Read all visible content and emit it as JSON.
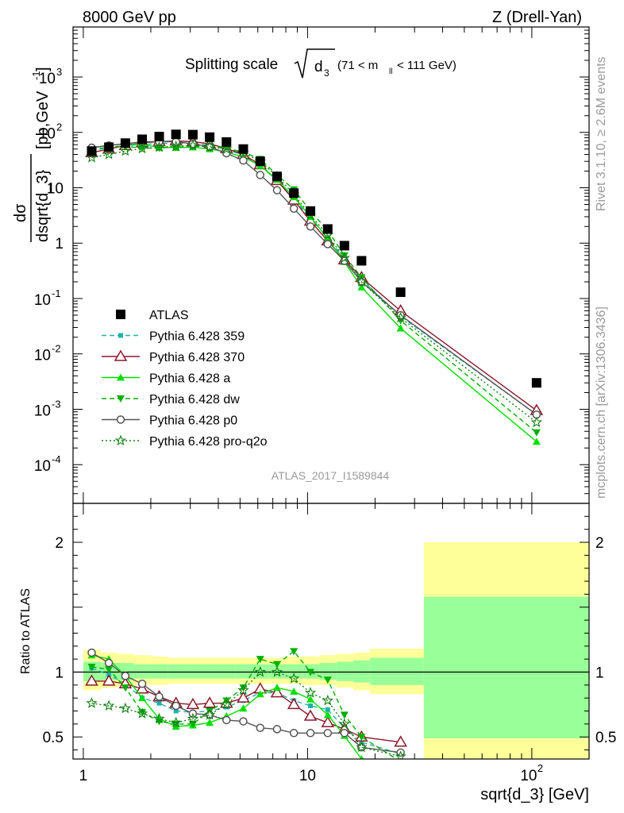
{
  "header": {
    "left": "8000 GeV pp",
    "right": "Z (Drell-Yan)"
  },
  "side_texts": {
    "rivet": "Rivet 3.1.10, ≥ 2.6M events",
    "mcplots": "mcplots.cern.ch [arXiv:1306.3436]"
  },
  "chart_data": [
    {
      "type": "line",
      "title_parts": {
        "prefix": "Splitting scale",
        "var": "d",
        "var_sub": "3",
        "range_open": "(71 < m",
        "range_sub": "ll",
        "range_close": " < 111 GeV)"
      },
      "ylabel_top": "dσ",
      "ylabel_bottom": "dsqrt{d_3}",
      "ylabel_units": "[pb,GeV",
      "ylabel_units_sup": "-1",
      "ylabel_units_close": "]",
      "watermark": "ATLAS_2017_I1589844",
      "y_scale": "log",
      "ylim": [
        2e-05,
        8000
      ],
      "y_ticks": [
        {
          "v": 0.0001,
          "base": "10",
          "exp": "-4"
        },
        {
          "v": 0.001,
          "base": "10",
          "exp": "-3"
        },
        {
          "v": 0.01,
          "base": "10",
          "exp": "-2"
        },
        {
          "v": 0.1,
          "base": "10",
          "exp": "-1"
        },
        {
          "v": 1,
          "base": "1",
          "exp": ""
        },
        {
          "v": 10,
          "base": "10",
          "exp": ""
        },
        {
          "v": 100,
          "base": "10",
          "exp": "2"
        },
        {
          "v": 1000,
          "base": "10",
          "exp": "3"
        }
      ],
      "x_scale": "log",
      "xlim": [
        0.9,
        180
      ],
      "legend_position": "middle-left",
      "x": [
        1.09,
        1.3,
        1.54,
        1.83,
        2.18,
        2.59,
        3.08,
        3.66,
        4.35,
        5.17,
        6.15,
        7.31,
        8.69,
        10.3,
        12.3,
        14.6,
        17.4,
        26.0,
        105.0
      ],
      "series": [
        {
          "name": "ATLAS",
          "color": "#000000",
          "style": "data",
          "y": [
            46,
            54,
            64,
            75,
            84,
            92,
            91,
            82,
            67,
            50,
            30,
            16,
            8,
            3.8,
            1.8,
            0.9,
            0.48,
            0.13,
            0.003
          ]
        },
        {
          "name": "Pythia 6.428 359",
          "color": "#20b2aa",
          "style": "dashed",
          "marker": "square-small",
          "y": [
            47,
            53,
            58,
            60,
            63,
            64,
            63,
            58,
            49,
            39,
            25,
            13.5,
            6.2,
            2.8,
            1.25,
            0.52,
            0.22,
            0.048,
            0.0008
          ]
        },
        {
          "name": "Pythia 6.428 370",
          "color": "#8b1a2a",
          "style": "solid",
          "marker": "triangle-open",
          "y": [
            43,
            50,
            58,
            65,
            68,
            70,
            68,
            62,
            51,
            40,
            26,
            13.5,
            6.0,
            2.5,
            1.1,
            0.5,
            0.24,
            0.06,
            0.00095
          ]
        },
        {
          "name": "Pythia 6.428 a",
          "color": "#00e000",
          "style": "solid",
          "marker": "triangle-up",
          "y": [
            52,
            59,
            62,
            60,
            54,
            53,
            54,
            50,
            44,
            36,
            25,
            14,
            6.8,
            3.0,
            1.2,
            0.46,
            0.16,
            0.029,
            0.00026
          ]
        },
        {
          "name": "Pythia 6.428 dw",
          "color": "#00b000",
          "style": "dashed",
          "marker": "triangle-down",
          "y": [
            48,
            55,
            56,
            52,
            52,
            55,
            55,
            57,
            52,
            44,
            33,
            17,
            9.3,
            3.8,
            1.7,
            0.6,
            0.24,
            0.04,
            0.00038
          ]
        },
        {
          "name": "Pythia 6.428 p0",
          "color": "#555555",
          "style": "solid",
          "marker": "circle-open",
          "y": [
            53,
            58,
            62,
            68,
            68,
            68,
            62,
            55,
            42,
            31,
            17,
            9,
            4.2,
            2.0,
            0.96,
            0.48,
            0.2,
            0.05,
            0.0008
          ]
        },
        {
          "name": "Pythia 6.428 pro-q2o",
          "color": "#108010",
          "style": "dotted",
          "marker": "star-open",
          "y": [
            35,
            40,
            46,
            51,
            54,
            56,
            58,
            55,
            50,
            43,
            30,
            16,
            7.6,
            3.2,
            1.4,
            0.54,
            0.2,
            0.045,
            0.00058
          ]
        }
      ]
    },
    {
      "type": "line",
      "ylabel": "Ratio to ATLAS",
      "ylim": [
        0.33,
        2.3
      ],
      "y_ticks": [
        {
          "v": 0.5,
          "label": "0.5"
        },
        {
          "v": 1,
          "label": "1"
        },
        {
          "v": 2,
          "label": "2"
        }
      ],
      "x_ticks": [
        {
          "v": 1,
          "base": "1",
          "exp": ""
        },
        {
          "v": 10,
          "base": "10",
          "exp": ""
        },
        {
          "v": 100,
          "base": "10",
          "exp": "2"
        }
      ],
      "xlabel": "sqrt{d_3} [GeV]",
      "bands": {
        "edges": [
          1.0,
          1.2,
          1.42,
          1.68,
          2.0,
          2.38,
          2.83,
          3.37,
          4.0,
          4.76,
          5.66,
          6.73,
          8.0,
          9.51,
          11.3,
          13.45,
          16.0,
          19.0,
          33.0,
          180
        ],
        "yellow": [
          [
            0.86,
            1.17
          ],
          [
            0.88,
            1.15
          ],
          [
            0.89,
            1.14
          ],
          [
            0.9,
            1.13
          ],
          [
            0.9,
            1.12
          ],
          [
            0.91,
            1.11
          ],
          [
            0.91,
            1.11
          ],
          [
            0.91,
            1.11
          ],
          [
            0.91,
            1.11
          ],
          [
            0.91,
            1.11
          ],
          [
            0.91,
            1.11
          ],
          [
            0.91,
            1.11
          ],
          [
            0.91,
            1.12
          ],
          [
            0.9,
            1.12
          ],
          [
            0.9,
            1.13
          ],
          [
            0.88,
            1.14
          ],
          [
            0.86,
            1.15
          ],
          [
            0.83,
            1.18
          ],
          [
            0.33,
            2.0
          ]
        ],
        "green": [
          [
            0.93,
            1.08
          ],
          [
            0.94,
            1.07
          ],
          [
            0.94,
            1.07
          ],
          [
            0.95,
            1.06
          ],
          [
            0.95,
            1.06
          ],
          [
            0.95,
            1.06
          ],
          [
            0.95,
            1.06
          ],
          [
            0.95,
            1.06
          ],
          [
            0.95,
            1.06
          ],
          [
            0.95,
            1.06
          ],
          [
            0.95,
            1.06
          ],
          [
            0.95,
            1.06
          ],
          [
            0.95,
            1.06
          ],
          [
            0.95,
            1.06
          ],
          [
            0.94,
            1.07
          ],
          [
            0.93,
            1.08
          ],
          [
            0.92,
            1.09
          ],
          [
            0.9,
            1.11
          ],
          [
            0.49,
            1.58
          ]
        ]
      },
      "bands_colors": {
        "yellow": "#ffff99",
        "green": "#99ff99"
      },
      "x": [
        1.09,
        1.3,
        1.54,
        1.83,
        2.18,
        2.59,
        3.08,
        3.66,
        4.35,
        5.17,
        6.15,
        7.31,
        8.69,
        10.3,
        12.3,
        14.6,
        17.4,
        26.0
      ],
      "series": [
        {
          "name": "Pythia 6.428 359",
          "color": "#20b2aa",
          "style": "dashed",
          "marker": "square-small",
          "y": [
            1.03,
            0.98,
            0.91,
            0.8,
            0.76,
            0.7,
            0.69,
            0.7,
            0.73,
            0.78,
            0.84,
            0.84,
            0.78,
            0.74,
            0.71,
            0.57,
            0.46,
            0.37
          ]
        },
        {
          "name": "Pythia 6.428 370",
          "color": "#8b1a2a",
          "style": "solid",
          "marker": "triangle-open",
          "y": [
            0.93,
            0.93,
            0.91,
            0.87,
            0.81,
            0.76,
            0.75,
            0.76,
            0.76,
            0.8,
            0.87,
            0.84,
            0.75,
            0.66,
            0.61,
            0.56,
            0.5,
            0.46
          ]
        },
        {
          "name": "Pythia 6.428 a",
          "color": "#00e000",
          "style": "solid",
          "marker": "triangle-up",
          "y": [
            1.13,
            1.1,
            0.97,
            0.8,
            0.64,
            0.58,
            0.59,
            0.61,
            0.66,
            0.72,
            0.83,
            0.88,
            0.85,
            0.79,
            0.67,
            0.51,
            0.33,
            0.22
          ]
        },
        {
          "name": "Pythia 6.428 dw",
          "color": "#00b000",
          "style": "dashed",
          "marker": "triangle-down",
          "y": [
            1.04,
            1.02,
            0.88,
            0.69,
            0.62,
            0.6,
            0.6,
            0.7,
            0.78,
            0.88,
            1.1,
            1.06,
            1.16,
            1.0,
            0.94,
            0.67,
            0.5,
            0.31
          ]
        },
        {
          "name": "Pythia 6.428 p0",
          "color": "#555555",
          "style": "solid",
          "marker": "circle-open",
          "y": [
            1.15,
            1.07,
            0.97,
            0.91,
            0.81,
            0.74,
            0.68,
            0.67,
            0.63,
            0.62,
            0.57,
            0.56,
            0.53,
            0.53,
            0.53,
            0.53,
            0.42,
            0.38
          ]
        },
        {
          "name": "Pythia 6.428 pro-q2o",
          "color": "#108010",
          "style": "dotted",
          "marker": "star-open",
          "y": [
            0.76,
            0.74,
            0.72,
            0.68,
            0.64,
            0.61,
            0.64,
            0.67,
            0.75,
            0.86,
            1.0,
            1.0,
            0.95,
            0.84,
            0.78,
            0.6,
            0.42,
            0.35
          ]
        }
      ]
    }
  ]
}
